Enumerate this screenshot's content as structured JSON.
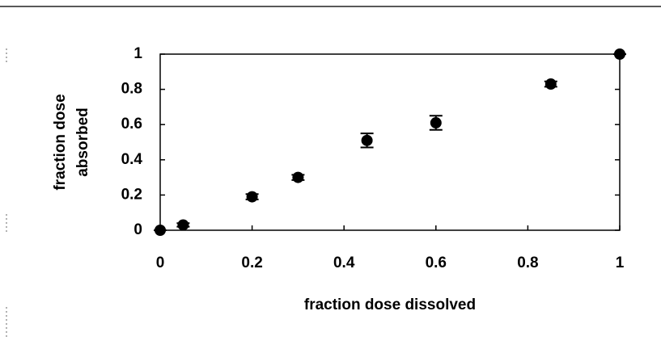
{
  "chart_data": {
    "type": "scatter",
    "xlabel": "fraction dose dissolved",
    "ylabel": [
      "fraction dose",
      "absorbed"
    ],
    "x": [
      0,
      0.05,
      0.2,
      0.3,
      0.45,
      0.6,
      0.85,
      1
    ],
    "series": [
      {
        "color": "#000000",
        "values": [
          0,
          0.03,
          0.19,
          0.3,
          0.51,
          0.61,
          0.83,
          1
        ],
        "errors": [
          0,
          0.01,
          0.015,
          0.015,
          0.04,
          0.04,
          0.015,
          0
        ]
      }
    ],
    "xlim": [
      0,
      1
    ],
    "xticks": [
      0,
      0.2,
      0.4,
      0.6,
      0.8,
      1
    ],
    "ylim": [
      0,
      1
    ],
    "yticks": [
      0,
      0.2,
      0.4,
      0.6,
      0.8,
      1
    ]
  }
}
